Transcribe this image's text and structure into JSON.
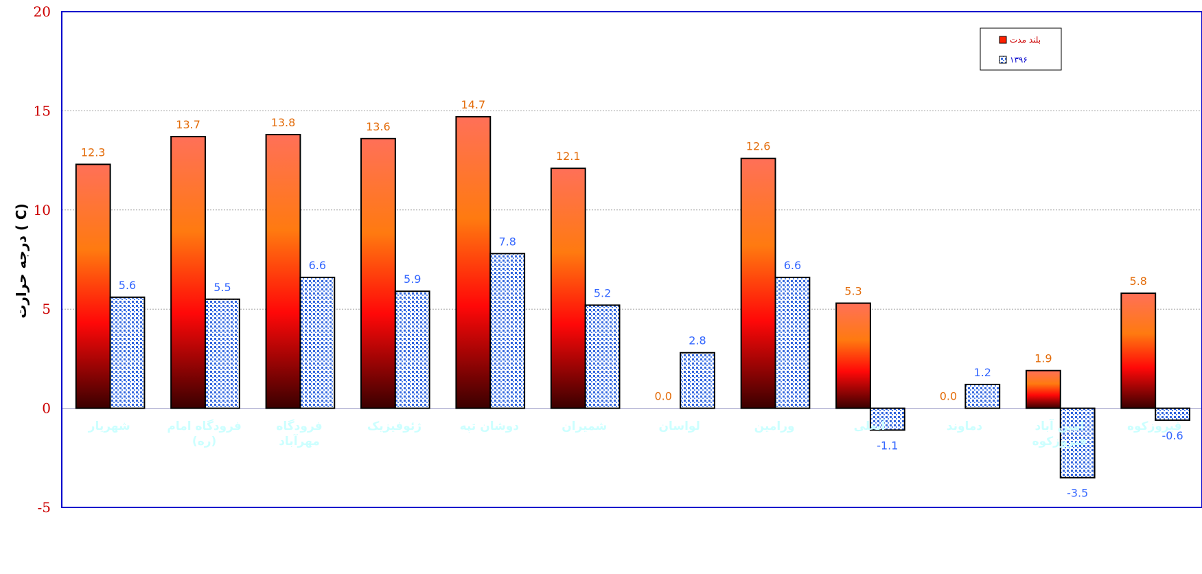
{
  "chart_data": {
    "type": "bar",
    "ylabel": "درجه حرارت  ( C)",
    "ylim": [
      -5,
      20
    ],
    "yticks": [
      -5,
      0,
      5,
      10,
      15,
      20
    ],
    "grid": true,
    "legend_position": "top-right",
    "categories": [
      "شهریار",
      "فرودگاه امام (ره)",
      "فرودگاه مهرآباد",
      "ژئوفیزیک",
      "دوشان تپه",
      "شمیران",
      "لواسان",
      "ورامین",
      "آبعلی",
      "دماوند",
      "امین آباد فیروزکوه",
      "فیروزکوه"
    ],
    "series": [
      {
        "name": "بلند مدت",
        "values": [
          12.3,
          13.7,
          13.8,
          13.6,
          14.7,
          12.1,
          0.0,
          12.6,
          5.3,
          0.0,
          1.9,
          5.8
        ],
        "labels": [
          "12.3",
          "13.7",
          "13.8",
          "13.6",
          "14.7",
          "12.1",
          "0.0",
          "12.6",
          "5.3",
          "0.0",
          "1.9",
          "5.8"
        ],
        "label_color": "#E36C0A"
      },
      {
        "name": "۱۳۹۶",
        "values": [
          5.6,
          5.5,
          6.6,
          5.9,
          7.8,
          5.2,
          2.8,
          6.6,
          -1.1,
          1.2,
          -3.5,
          -0.6
        ],
        "labels": [
          "5.6",
          "5.5",
          "6.6",
          "5.9",
          "7.8",
          "5.2",
          "2.8",
          "6.6",
          "-1.1",
          "1.2",
          "-3.5",
          "-0.6"
        ],
        "label_color": "#3366FF"
      }
    ],
    "colors": {
      "axis": "#0000CC",
      "tick_text": "#CC0000",
      "grid": "#A0A0A0",
      "category_text": "#CCFFFF",
      "legend_long_term_text": "#CC0000",
      "legend_1396_text": "#0000CC"
    }
  }
}
